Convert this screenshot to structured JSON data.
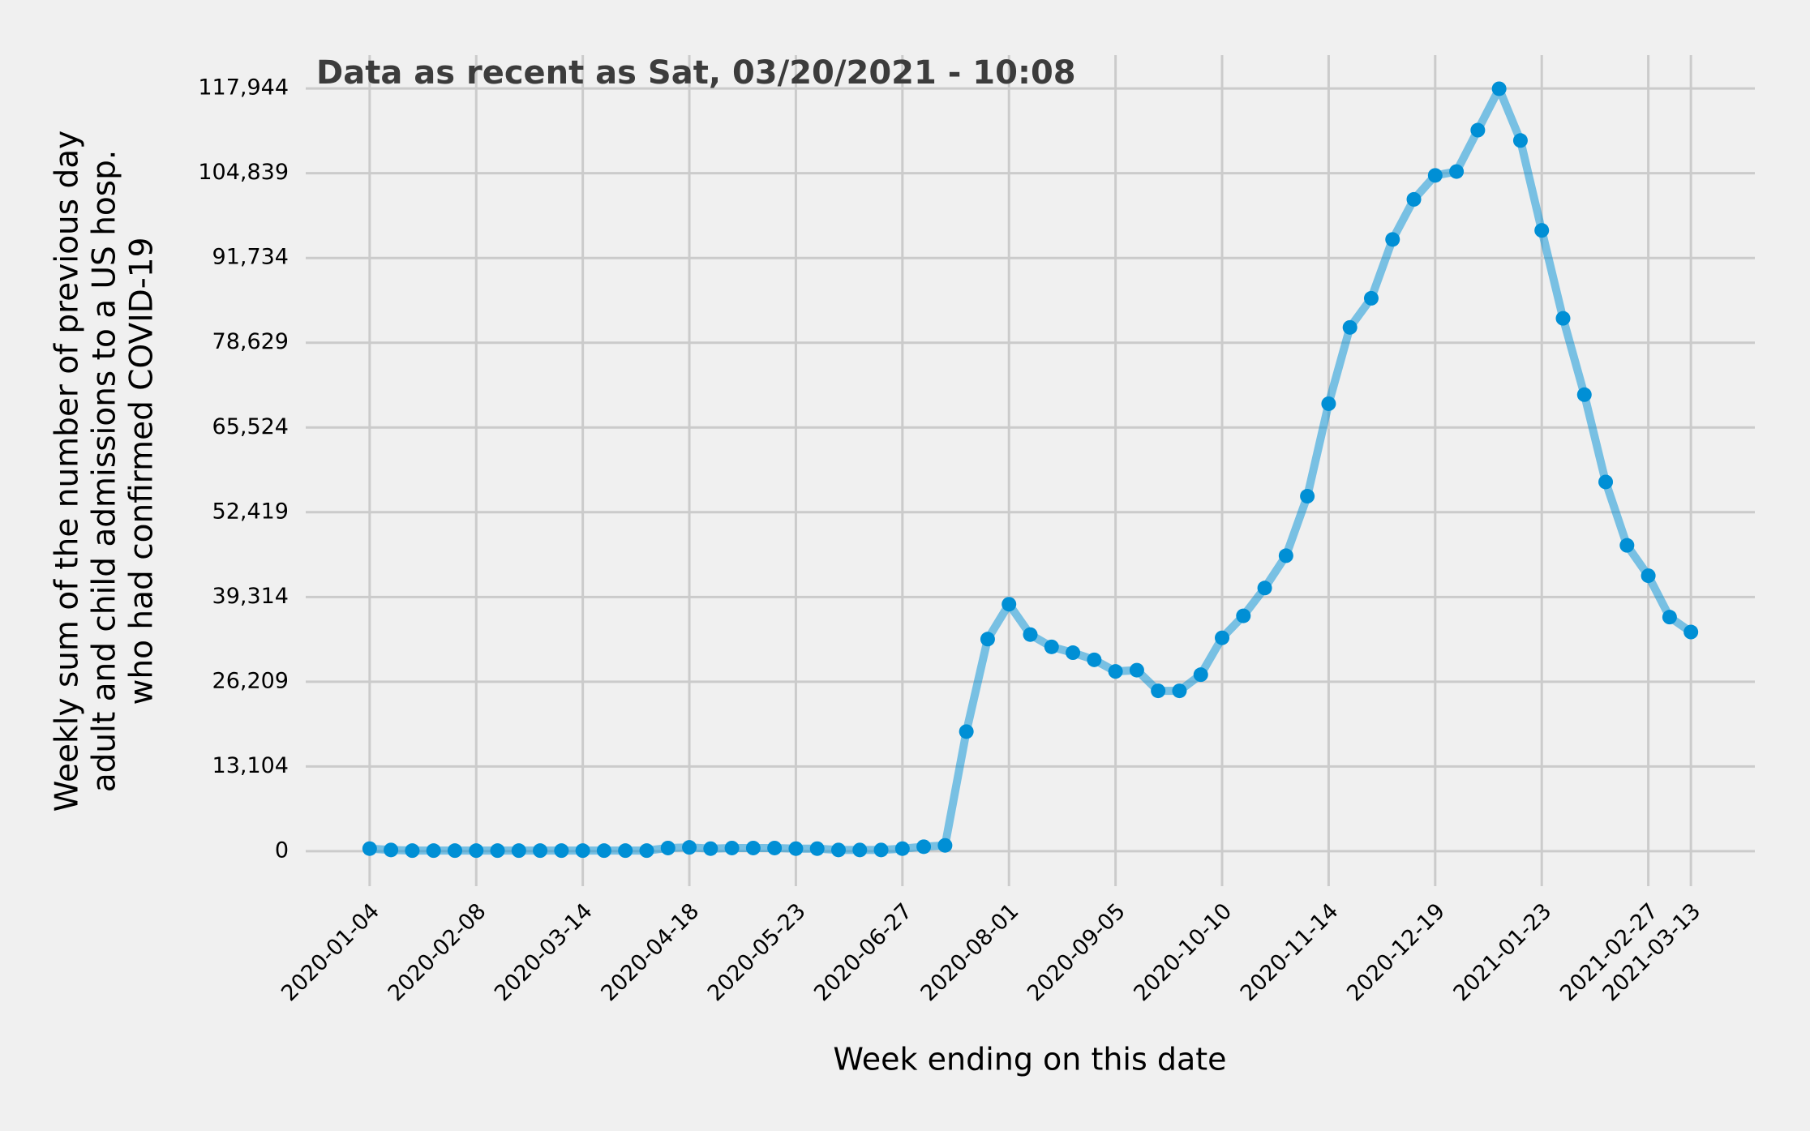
{
  "chart_data": {
    "type": "line",
    "title": "Data as recent as Sat, 03/20/2021 - 10:08",
    "xlabel": "Week ending on this date",
    "ylabel": [
      "Weekly sum of the number of previous day",
      "adult and child admissions to a US hosp.",
      "who had confirmed COVID-19"
    ],
    "x": [
      "2020-01-04",
      "2020-01-11",
      "2020-01-18",
      "2020-01-25",
      "2020-02-01",
      "2020-02-08",
      "2020-02-15",
      "2020-02-22",
      "2020-02-29",
      "2020-03-07",
      "2020-03-14",
      "2020-03-21",
      "2020-03-28",
      "2020-04-04",
      "2020-04-11",
      "2020-04-18",
      "2020-04-25",
      "2020-05-02",
      "2020-05-09",
      "2020-05-16",
      "2020-05-23",
      "2020-05-30",
      "2020-06-06",
      "2020-06-13",
      "2020-06-20",
      "2020-06-27",
      "2020-07-04",
      "2020-07-11",
      "2020-07-18",
      "2020-07-25",
      "2020-08-01",
      "2020-08-08",
      "2020-08-15",
      "2020-08-22",
      "2020-08-29",
      "2020-09-05",
      "2020-09-12",
      "2020-09-19",
      "2020-09-26",
      "2020-10-03",
      "2020-10-10",
      "2020-10-17",
      "2020-10-24",
      "2020-10-31",
      "2020-11-07",
      "2020-11-14",
      "2020-11-21",
      "2020-11-28",
      "2020-12-05",
      "2020-12-12",
      "2020-12-19",
      "2020-12-26",
      "2021-01-02",
      "2021-01-09",
      "2021-01-16",
      "2021-01-23",
      "2021-01-30",
      "2021-02-06",
      "2021-02-13",
      "2021-02-20",
      "2021-02-27",
      "2021-03-06",
      "2021-03-13"
    ],
    "values": [
      400,
      200,
      100,
      100,
      100,
      100,
      100,
      100,
      100,
      100,
      100,
      100,
      100,
      100,
      500,
      600,
      400,
      500,
      500,
      500,
      400,
      400,
      200,
      200,
      200,
      400,
      700,
      900,
      18500,
      32800,
      38200,
      33500,
      31600,
      30700,
      29600,
      27800,
      28000,
      24800,
      24800,
      27300,
      33000,
      36400,
      40700,
      45700,
      54900,
      69200,
      81000,
      85500,
      94600,
      100800,
      104500,
      105100,
      111500,
      117900,
      109900,
      96000,
      82400,
      70600,
      57100,
      47300,
      42600,
      36200,
      33900
    ],
    "color": "#008fd5",
    "xlim": [
      "2019-12-14",
      "2021-04-03"
    ],
    "xticks": [
      "2020-01-04",
      "2020-02-08",
      "2020-03-14",
      "2020-04-18",
      "2020-05-23",
      "2020-06-27",
      "2020-08-01",
      "2020-09-05",
      "2020-10-10",
      "2020-11-14",
      "2020-12-19",
      "2021-01-23",
      "2021-02-27",
      "2021-03-13"
    ],
    "ylim": [
      -5400,
      123100
    ],
    "yticks": [
      0,
      {
        "value": 13104,
        "label": "13,104"
      },
      {
        "value": 26209,
        "label": "26,209"
      },
      {
        "value": 39314,
        "label": "39,314"
      },
      {
        "value": 52419,
        "label": "52,419"
      },
      {
        "value": 65524,
        "label": "65,524"
      },
      {
        "value": 78629,
        "label": "78,629"
      },
      {
        "value": 91734,
        "label": "91,734"
      },
      {
        "value": 104839,
        "label": "104,839"
      },
      {
        "value": 117944,
        "label": "117,944"
      }
    ],
    "grid": true
  }
}
